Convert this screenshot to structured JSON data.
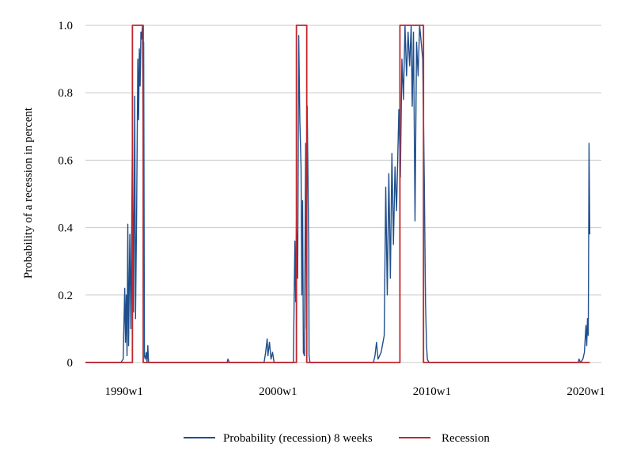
{
  "chart_data": {
    "type": "line",
    "ylabel": "Probability of a recession in percent",
    "xlabel": "",
    "ylim": [
      0,
      1.0
    ],
    "xlim": [
      1987.5,
      2021.0
    ],
    "x_ticks": [
      {
        "value": 1990,
        "label": "1990w1"
      },
      {
        "value": 2000,
        "label": "2000w1"
      },
      {
        "value": 2010,
        "label": "2010w1"
      },
      {
        "value": 2020,
        "label": "2020w1"
      }
    ],
    "y_ticks": [
      {
        "value": 0,
        "label": "0"
      },
      {
        "value": 0.2,
        "label": "0.2"
      },
      {
        "value": 0.4,
        "label": "0.4"
      },
      {
        "value": 0.6,
        "label": "0.6"
      },
      {
        "value": 0.8,
        "label": "0.8"
      },
      {
        "value": 1.0,
        "label": "1.0"
      }
    ],
    "grid": "horizontal",
    "legend_position": "bottom",
    "series": [
      {
        "name": "Probability (recession) 8 weeks",
        "color": "#1f4e8c",
        "points": [
          [
            1987.5,
            0
          ],
          [
            1989.8,
            0
          ],
          [
            1989.95,
            0.01
          ],
          [
            1990.05,
            0.22
          ],
          [
            1990.1,
            0.06
          ],
          [
            1990.15,
            0.2
          ],
          [
            1990.2,
            0.02
          ],
          [
            1990.25,
            0.41
          ],
          [
            1990.3,
            0.05
          ],
          [
            1990.38,
            0.38
          ],
          [
            1990.45,
            0.1
          ],
          [
            1990.55,
            0.68
          ],
          [
            1990.62,
            0.15
          ],
          [
            1990.7,
            0.79
          ],
          [
            1990.75,
            0.13
          ],
          [
            1990.82,
            0.43
          ],
          [
            1990.9,
            0.9
          ],
          [
            1990.95,
            0.72
          ],
          [
            1991.0,
            0.93
          ],
          [
            1991.05,
            0.82
          ],
          [
            1991.1,
            0.98
          ],
          [
            1991.15,
            0.96
          ],
          [
            1991.2,
            1.0
          ],
          [
            1991.25,
            0.6
          ],
          [
            1991.28,
            0.95
          ],
          [
            1991.33,
            0.02
          ],
          [
            1991.38,
            0.01
          ],
          [
            1991.45,
            0.03
          ],
          [
            1991.5,
            0.0
          ],
          [
            1991.55,
            0.05
          ],
          [
            1991.6,
            0.0
          ],
          [
            1996.7,
            0
          ],
          [
            1996.75,
            0.01
          ],
          [
            1996.85,
            0
          ],
          [
            1999.1,
            0
          ],
          [
            1999.2,
            0.03
          ],
          [
            1999.3,
            0.07
          ],
          [
            1999.35,
            0.02
          ],
          [
            1999.45,
            0.06
          ],
          [
            1999.55,
            0.01
          ],
          [
            1999.65,
            0.03
          ],
          [
            1999.75,
            0.0
          ],
          [
            2001.0,
            0.0
          ],
          [
            2001.1,
            0.36
          ],
          [
            2001.15,
            0.18
          ],
          [
            2001.2,
            0.42
          ],
          [
            2001.28,
            0.25
          ],
          [
            2001.35,
            0.97
          ],
          [
            2001.42,
            0.72
          ],
          [
            2001.5,
            0.58
          ],
          [
            2001.55,
            0.2
          ],
          [
            2001.6,
            0.48
          ],
          [
            2001.65,
            0.03
          ],
          [
            2001.72,
            0.02
          ],
          [
            2001.8,
            0.65
          ],
          [
            2001.85,
            0.1
          ],
          [
            2001.9,
            0.76
          ],
          [
            2001.95,
            0.55
          ],
          [
            2002.0,
            0.33
          ],
          [
            2002.02,
            0.02
          ],
          [
            2002.08,
            0.0
          ],
          [
            2005.7,
            0
          ],
          [
            2006.2,
            0
          ],
          [
            2006.3,
            0.02
          ],
          [
            2006.4,
            0.06
          ],
          [
            2006.5,
            0.01
          ],
          [
            2006.7,
            0.03
          ],
          [
            2006.9,
            0.08
          ],
          [
            2007.0,
            0.52
          ],
          [
            2007.1,
            0.2
          ],
          [
            2007.2,
            0.56
          ],
          [
            2007.3,
            0.25
          ],
          [
            2007.4,
            0.62
          ],
          [
            2007.5,
            0.35
          ],
          [
            2007.6,
            0.58
          ],
          [
            2007.7,
            0.45
          ],
          [
            2007.85,
            0.75
          ],
          [
            2007.95,
            0.55
          ],
          [
            2008.05,
            0.9
          ],
          [
            2008.15,
            0.78
          ],
          [
            2008.25,
            1.0
          ],
          [
            2008.35,
            0.85
          ],
          [
            2008.45,
            0.98
          ],
          [
            2008.55,
            0.88
          ],
          [
            2008.65,
            1.0
          ],
          [
            2008.72,
            0.76
          ],
          [
            2008.8,
            0.98
          ],
          [
            2008.9,
            0.42
          ],
          [
            2009.0,
            0.95
          ],
          [
            2009.1,
            0.85
          ],
          [
            2009.2,
            1.0
          ],
          [
            2009.3,
            0.95
          ],
          [
            2009.4,
            0.9
          ],
          [
            2009.5,
            0.55
          ],
          [
            2009.58,
            0.18
          ],
          [
            2009.65,
            0.05
          ],
          [
            2009.7,
            0.01
          ],
          [
            2009.8,
            0.0
          ],
          [
            2019.5,
            0.0
          ],
          [
            2019.55,
            0.01
          ],
          [
            2019.65,
            0.0
          ],
          [
            2019.8,
            0.01
          ],
          [
            2019.9,
            0.03
          ],
          [
            2020.0,
            0.11
          ],
          [
            2020.05,
            0.05
          ],
          [
            2020.1,
            0.13
          ],
          [
            2020.15,
            0.08
          ],
          [
            2020.2,
            0.65
          ],
          [
            2020.25,
            0.38
          ]
        ]
      },
      {
        "name": "Recession",
        "color": "#c1272d",
        "points": [
          [
            1987.5,
            0
          ],
          [
            1990.55,
            0
          ],
          [
            1990.55,
            1
          ],
          [
            1991.25,
            1
          ],
          [
            1991.25,
            0
          ],
          [
            2001.2,
            0
          ],
          [
            2001.2,
            1
          ],
          [
            2001.87,
            1
          ],
          [
            2001.87,
            0
          ],
          [
            2007.92,
            0
          ],
          [
            2007.92,
            1
          ],
          [
            2009.45,
            1
          ],
          [
            2009.45,
            0
          ],
          [
            2020.25,
            0
          ]
        ]
      }
    ]
  }
}
